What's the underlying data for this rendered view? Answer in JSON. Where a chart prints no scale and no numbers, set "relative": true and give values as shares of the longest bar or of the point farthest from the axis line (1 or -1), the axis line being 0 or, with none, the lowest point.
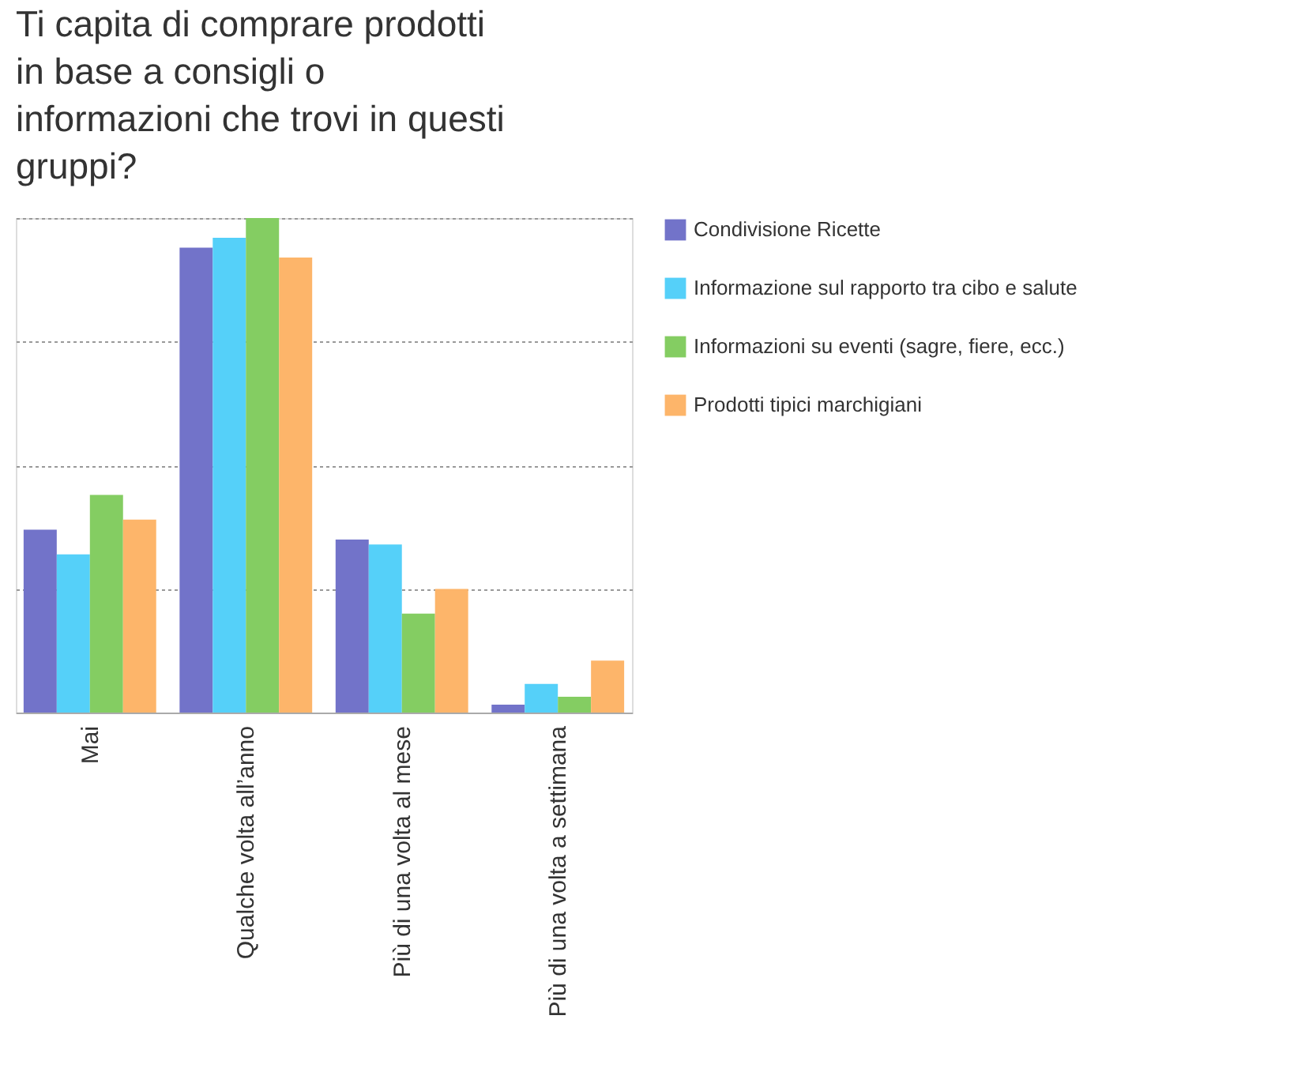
{
  "chart_data": {
    "type": "bar",
    "title": "Ti capita di comprare prodotti in base a consigli o informazioni che trovi in questi gruppi?",
    "categories": [
      "Mai",
      "Qualche volta all’anno",
      "Più di una volta al mese",
      "Più di una volta a settimana"
    ],
    "relative": true,
    "grid": "y",
    "legend": "top right",
    "series": [
      {
        "name": "Condivisione Ricette",
        "color": "#7273c9",
        "values": [
          0.37,
          0.94,
          0.35,
          0.016
        ]
      },
      {
        "name": "Informazione sul rapporto tra cibo e salute",
        "color": "#55d0f9",
        "values": [
          0.32,
          0.96,
          0.34,
          0.058
        ]
      },
      {
        "name": "Informazioni su eventi (sagre, fiere, ecc.)",
        "color": "#84cd62",
        "values": [
          0.44,
          1.0,
          0.2,
          0.032
        ]
      },
      {
        "name": "Prodotti tipici marchigiani",
        "color": "#fdb56a",
        "values": [
          0.39,
          0.92,
          0.25,
          0.105
        ]
      }
    ]
  }
}
